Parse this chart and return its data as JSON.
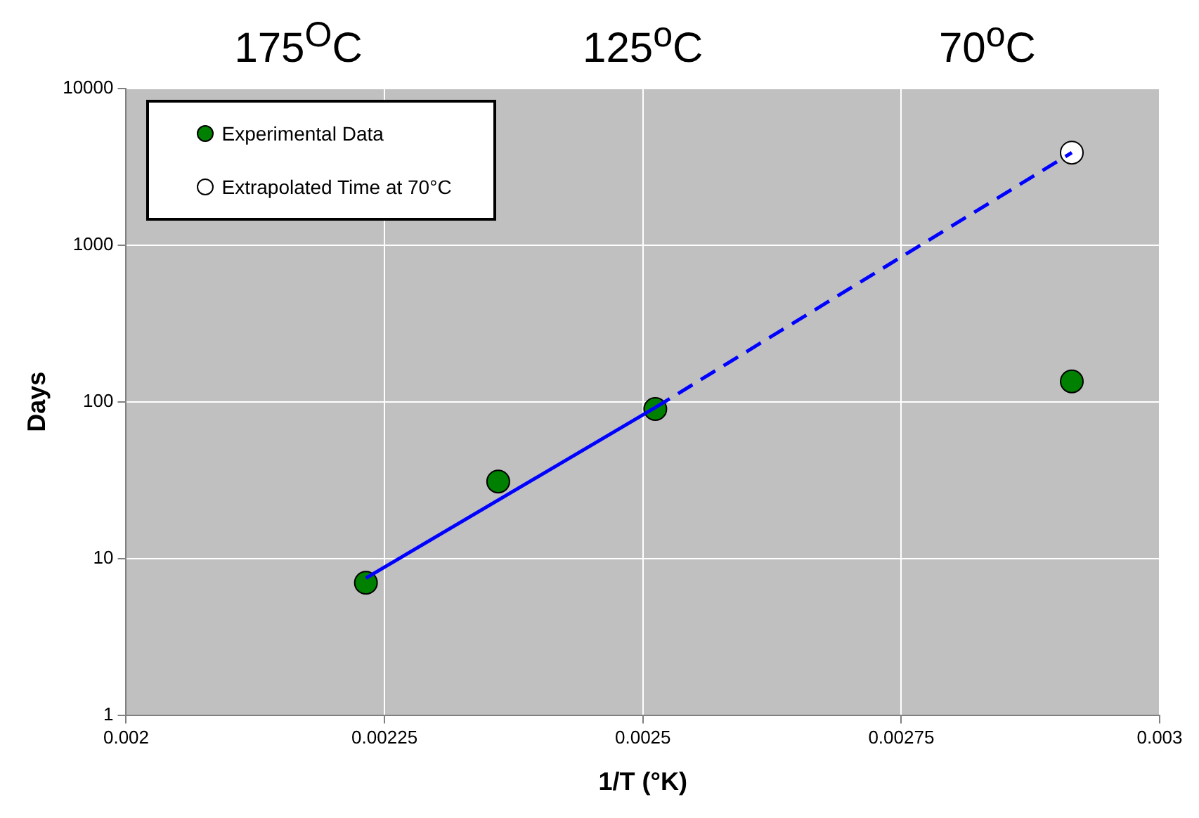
{
  "chart_data": {
    "type": "scatter",
    "xlabel": "1/T (°K)",
    "ylabel": "Days",
    "xlim": [
      0.002,
      0.003
    ],
    "xticks": [
      0.002,
      0.00225,
      0.0025,
      0.00275,
      0.003
    ],
    "ylim": [
      1,
      10000
    ],
    "yticks": [
      1,
      10,
      100,
      1000,
      10000
    ],
    "log": "y",
    "grid": true,
    "legend": "top left",
    "annotations": [
      "175$^{O}$C",
      "125$^{o}$C",
      "70$^{o}$C"
    ],
    "series": [
      {
        "name": "Experimental Data",
        "marker": "circle",
        "color": "#008000",
        "x": [
          0.002232,
          0.00236,
          0.002512,
          0.002915
        ],
        "values": [
          7,
          31,
          90,
          135
        ]
      },
      {
        "name": "Extrapolated Time at 70°C",
        "marker": "circle",
        "color": "#ffffff",
        "x": [
          0.002915
        ],
        "values": [
          3900
        ]
      },
      {
        "type": "line",
        "color": "#0000ff",
        "line_style": "solid",
        "x": [
          0.002232,
          0.002512
        ],
        "values": [
          7.5,
          92
        ]
      },
      {
        "type": "line",
        "color": "#0000ff",
        "line_style": "dashed",
        "x": [
          0.002512,
          0.002915
        ],
        "values": [
          92,
          3900
        ]
      }
    ]
  }
}
